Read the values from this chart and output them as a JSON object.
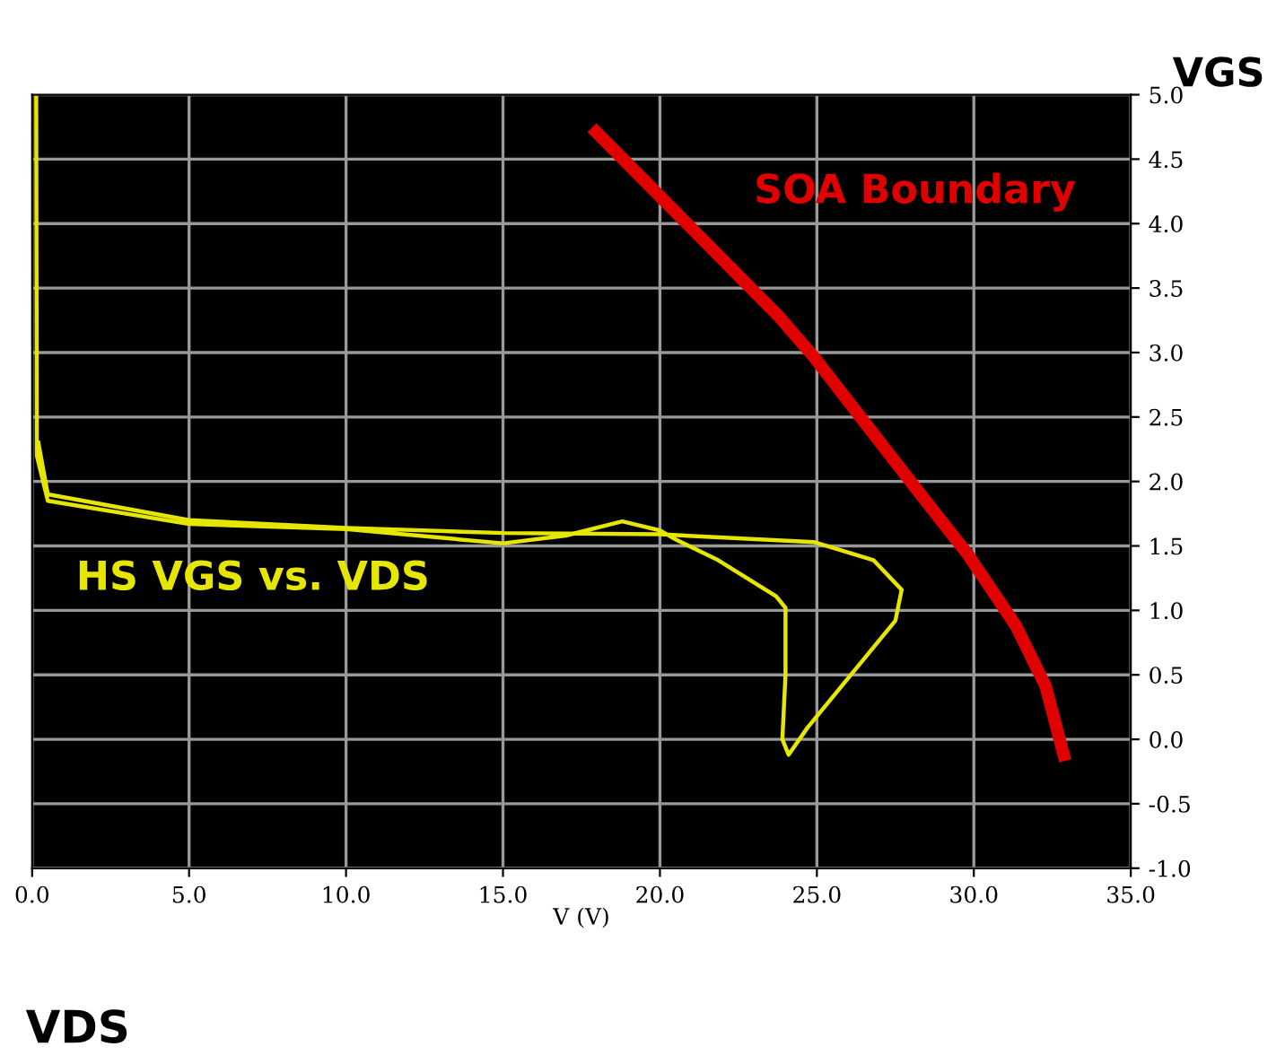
{
  "chart_data": {
    "type": "line",
    "xlabel": "V (V)",
    "ylabel": "VGS",
    "annotations": [
      "VDS"
    ],
    "series": [
      {
        "name": "SOA Boundary",
        "color": "#e00000",
        "x": [
          17.97,
          23.75,
          24.89,
          28.3,
          29.82,
          31.34,
          32.29,
          32.86
        ],
        "values": [
          4.71,
          3.29,
          2.97,
          1.9,
          1.43,
          0.88,
          0.41,
          -0.12
        ]
      },
      {
        "name": "HS VGS vs. VDS",
        "color": "#e6e600",
        "x": [
          0.13,
          0.15,
          0.5,
          5,
          10,
          15,
          17,
          18.8,
          20,
          20.5,
          21.85,
          23.7,
          24.0,
          24.0,
          23.9,
          24.1,
          24.7,
          27.5,
          27.7,
          26.8,
          24.9,
          20,
          15,
          10,
          5,
          0.5,
          0.2
        ],
        "values": [
          5.0,
          2.2,
          1.85,
          1.67,
          1.63,
          1.52,
          1.58,
          1.69,
          1.62,
          1.55,
          1.39,
          1.11,
          1.02,
          0.5,
          0.0,
          -0.12,
          0.09,
          0.92,
          1.16,
          1.39,
          1.53,
          1.59,
          1.6,
          1.64,
          1.7,
          1.9,
          2.3
        ]
      }
    ],
    "xlim": [
      0,
      35
    ],
    "ylim": [
      -1,
      5
    ],
    "xticks": [
      {
        "value": 0,
        "label": "0.0"
      },
      {
        "value": 5,
        "label": "5.0"
      },
      {
        "value": 10,
        "label": "10.0"
      },
      {
        "value": 15,
        "label": "15.0"
      },
      {
        "value": 20,
        "label": "20.0"
      },
      {
        "value": 25,
        "label": "25.0"
      },
      {
        "value": 30,
        "label": "30.0"
      },
      {
        "value": 35,
        "label": "35.0"
      }
    ],
    "yticks": [
      {
        "value": -1,
        "label": "-1.0"
      },
      {
        "value": -0.5,
        "label": "-0.5"
      },
      {
        "value": 0,
        "label": "0.0"
      },
      {
        "value": 0.5,
        "label": "0.5"
      },
      {
        "value": 1,
        "label": "1.0"
      },
      {
        "value": 1.5,
        "label": "1.5"
      },
      {
        "value": 2,
        "label": "2.0"
      },
      {
        "value": 2.5,
        "label": "2.5"
      },
      {
        "value": 3,
        "label": "3.0"
      },
      {
        "value": 3.5,
        "label": "3.5"
      },
      {
        "value": 4,
        "label": "4.0"
      },
      {
        "value": 4.5,
        "label": "4.5"
      },
      {
        "value": 5,
        "label": "5.0"
      }
    ],
    "grid": true,
    "legend": false,
    "marker": "none",
    "line_style": "solid"
  }
}
